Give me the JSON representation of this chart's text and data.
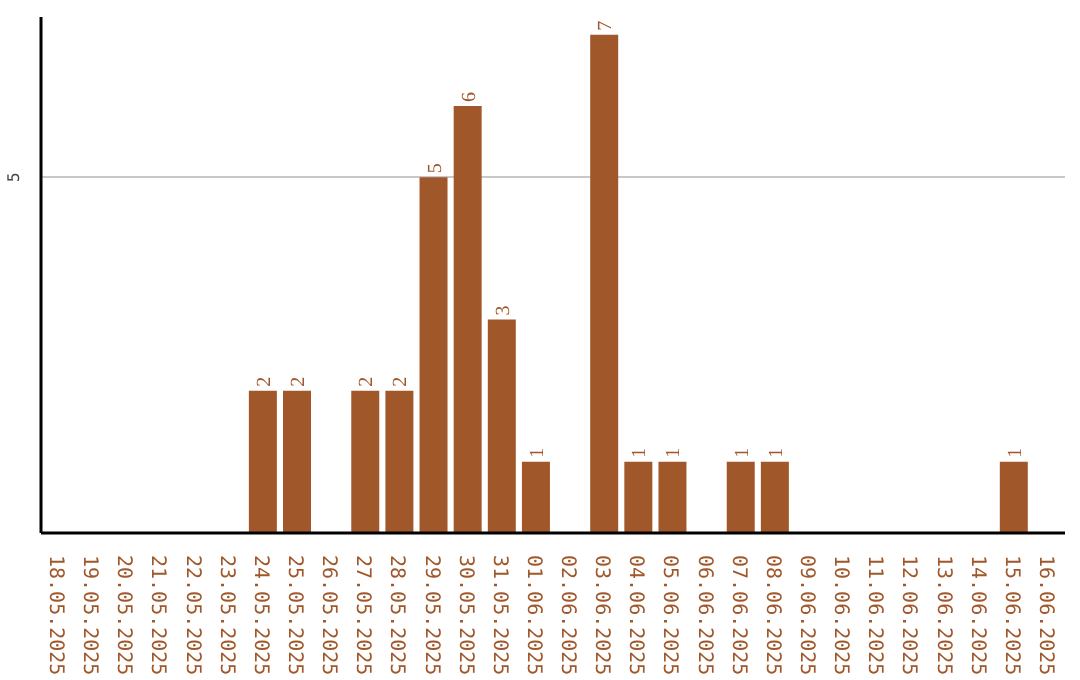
{
  "chart_data": {
    "type": "bar",
    "categories": [
      "18.05.2025",
      "19.05.2025",
      "20.05.2025",
      "21.05.2025",
      "22.05.2025",
      "23.05.2025",
      "24.05.2025",
      "25.05.2025",
      "26.05.2025",
      "27.05.2025",
      "28.05.2025",
      "29.05.2025",
      "30.05.2025",
      "31.05.2025",
      "01.06.2025",
      "02.06.2025",
      "03.06.2025",
      "04.06.2025",
      "05.06.2025",
      "06.06.2025",
      "07.06.2025",
      "08.06.2025",
      "09.06.2025",
      "10.06.2025",
      "11.06.2025",
      "12.06.2025",
      "13.06.2025",
      "14.06.2025",
      "15.06.2025",
      "16.06.2025"
    ],
    "values": [
      0,
      0,
      0,
      0,
      0,
      0,
      2,
      2,
      0,
      2,
      2,
      5,
      6,
      3,
      1,
      0,
      7,
      1,
      1,
      0,
      1,
      1,
      0,
      0,
      0,
      0,
      0,
      0,
      1,
      0
    ],
    "value_labels": [
      null,
      null,
      null,
      null,
      null,
      null,
      "2",
      "2",
      null,
      "2",
      "2",
      "5",
      "6",
      "3",
      "1",
      null,
      "7",
      "1",
      "1",
      null,
      "1",
      "1",
      null,
      null,
      null,
      null,
      null,
      null,
      "1",
      null
    ],
    "color": "#a0572a",
    "ylim": [
      0,
      7.25
    ],
    "yticks": [
      5
    ],
    "grid": "y"
  }
}
